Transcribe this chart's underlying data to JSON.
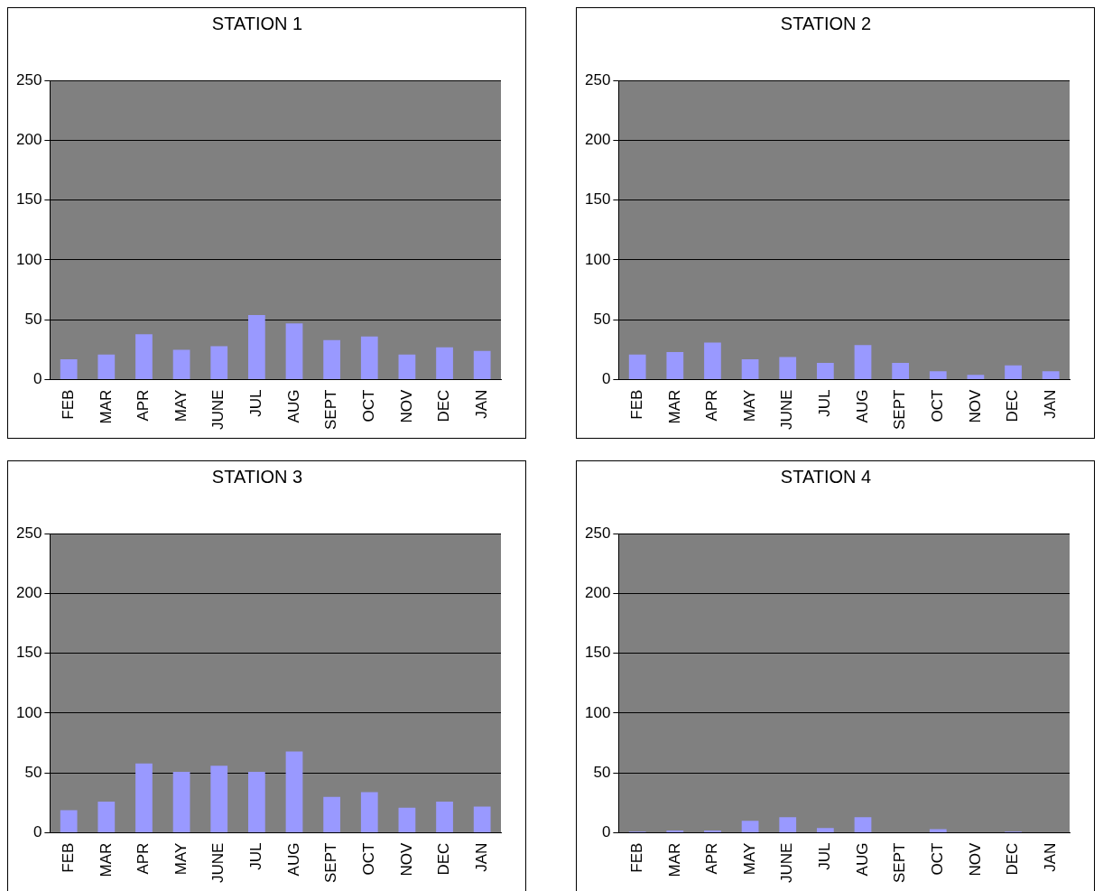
{
  "chart_data": [
    {
      "type": "bar",
      "title": "STATION 1",
      "categories": [
        "FEB",
        "MAR",
        "APR",
        "MAY",
        "JUNE",
        "JUL",
        "AUG",
        "SEPT",
        "OCT",
        "NOV",
        "DEC",
        "JAN"
      ],
      "values": [
        17,
        21,
        38,
        25,
        28,
        54,
        47,
        33,
        36,
        21,
        27,
        24
      ],
      "color": "#9999ff",
      "ylim": [
        0,
        250
      ],
      "yticks": [
        0,
        50,
        100,
        150,
        200,
        250
      ],
      "grid": "y",
      "legend": false
    },
    {
      "type": "bar",
      "title": "STATION 2",
      "categories": [
        "FEB",
        "MAR",
        "APR",
        "MAY",
        "JUNE",
        "JUL",
        "AUG",
        "SEPT",
        "OCT",
        "NOV",
        "DEC",
        "JAN"
      ],
      "values": [
        21,
        23,
        31,
        17,
        19,
        14,
        29,
        14,
        7,
        4,
        12,
        7
      ],
      "color": "#9999ff",
      "ylim": [
        0,
        250
      ],
      "yticks": [
        0,
        50,
        100,
        150,
        200,
        250
      ],
      "grid": "y",
      "legend": false
    },
    {
      "type": "bar",
      "title": "STATION 3",
      "categories": [
        "FEB",
        "MAR",
        "APR",
        "MAY",
        "JUNE",
        "JUL",
        "AUG",
        "SEPT",
        "OCT",
        "NOV",
        "DEC",
        "JAN"
      ],
      "values": [
        19,
        26,
        58,
        51,
        56,
        51,
        68,
        30,
        34,
        21,
        26,
        22
      ],
      "color": "#9999ff",
      "ylim": [
        0,
        250
      ],
      "yticks": [
        0,
        50,
        100,
        150,
        200,
        250
      ],
      "grid": "y",
      "legend": false
    },
    {
      "type": "bar",
      "title": "STATION 4",
      "categories": [
        "FEB",
        "MAR",
        "APR",
        "MAY",
        "JUNE",
        "JUL",
        "AUG",
        "SEPT",
        "OCT",
        "NOV",
        "DEC",
        "JAN"
      ],
      "values": [
        1,
        2,
        2,
        10,
        13,
        4,
        13,
        0,
        3,
        0,
        1,
        0
      ],
      "color": "#9999ff",
      "ylim": [
        0,
        250
      ],
      "yticks": [
        0,
        50,
        100,
        150,
        200,
        250
      ],
      "grid": "y",
      "legend": false
    }
  ]
}
